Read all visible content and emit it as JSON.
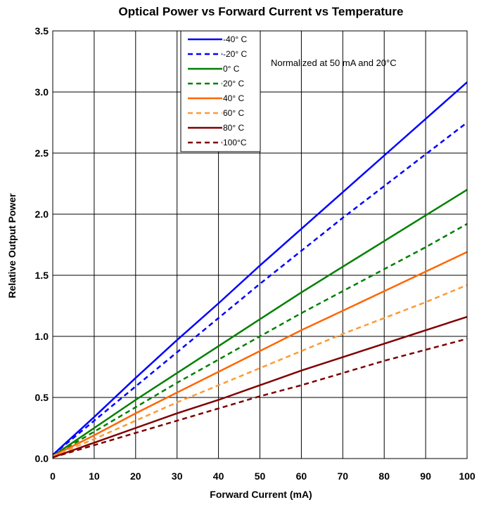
{
  "chart_data": {
    "type": "line",
    "title": "Optical Power vs Forward Current vs Temperature",
    "xlabel": "Forward Current (mA)",
    "ylabel": "Relative Output Power",
    "xlim": [
      0,
      100
    ],
    "ylim": [
      0,
      3.5
    ],
    "x_ticks": [
      "0",
      "10",
      "20",
      "30",
      "40",
      "50",
      "60",
      "70",
      "80",
      "90",
      "100"
    ],
    "y_ticks": [
      "0.0",
      "0.5",
      "1.0",
      "1.5",
      "2.0",
      "2.5",
      "3.0",
      "3.5"
    ],
    "grid": true,
    "legend_position": "top-center",
    "annotation": "Normalized at 50 mA and 20°C",
    "x": [
      0,
      10,
      20,
      30,
      40,
      50,
      60,
      70,
      80,
      90,
      100
    ],
    "series": [
      {
        "name": "-40° C",
        "color": "#0000ff",
        "dashed": false,
        "values": [
          0.03,
          0.34,
          0.66,
          0.97,
          1.27,
          1.58,
          1.88,
          2.18,
          2.48,
          2.78,
          3.08
        ]
      },
      {
        "name": "-20° C",
        "color": "#0000ff",
        "dashed": true,
        "values": [
          0.03,
          0.31,
          0.59,
          0.87,
          1.15,
          1.43,
          1.7,
          1.97,
          2.23,
          2.49,
          2.75
        ]
      },
      {
        "name": "0° C",
        "color": "#008000",
        "dashed": false,
        "values": [
          0.02,
          0.25,
          0.48,
          0.7,
          0.92,
          1.14,
          1.36,
          1.57,
          1.78,
          1.99,
          2.2
        ]
      },
      {
        "name": "20° C",
        "color": "#008000",
        "dashed": true,
        "values": [
          0.02,
          0.22,
          0.42,
          0.62,
          0.81,
          1.0,
          1.19,
          1.37,
          1.55,
          1.73,
          1.92
        ]
      },
      {
        "name": "40° C",
        "color": "#ff6600",
        "dashed": false,
        "values": [
          0.02,
          0.19,
          0.37,
          0.54,
          0.71,
          0.88,
          1.05,
          1.21,
          1.37,
          1.53,
          1.69
        ]
      },
      {
        "name": "60° C",
        "color": "#ff9933",
        "dashed": true,
        "values": [
          0.02,
          0.16,
          0.31,
          0.46,
          0.6,
          0.74,
          0.88,
          1.02,
          1.15,
          1.28,
          1.42
        ]
      },
      {
        "name": "80° C",
        "color": "#800000",
        "dashed": false,
        "values": [
          0.01,
          0.13,
          0.25,
          0.37,
          0.48,
          0.6,
          0.72,
          0.83,
          0.94,
          1.05,
          1.16
        ]
      },
      {
        "name": "100°C",
        "color": "#800000",
        "dashed": true,
        "values": [
          0.01,
          0.11,
          0.21,
          0.31,
          0.41,
          0.51,
          0.6,
          0.7,
          0.8,
          0.89,
          0.98
        ]
      }
    ]
  }
}
